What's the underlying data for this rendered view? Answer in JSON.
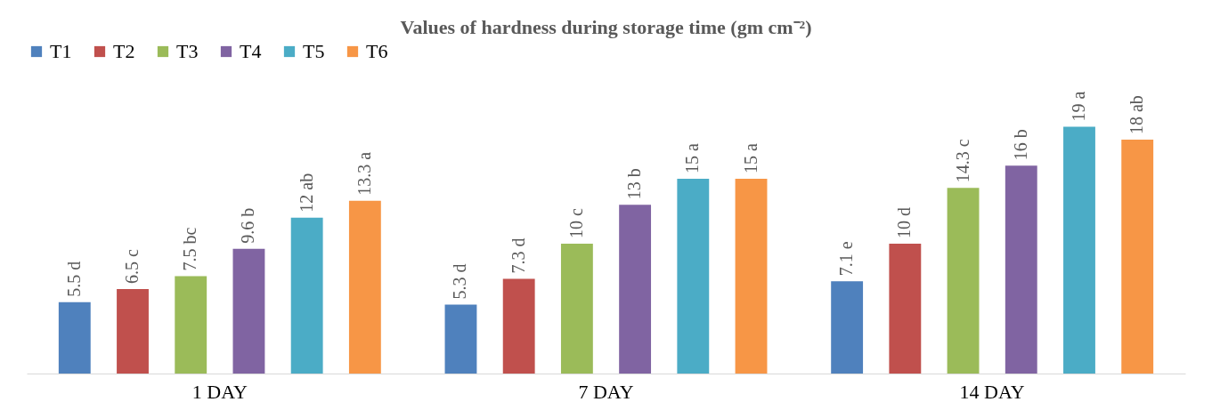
{
  "chart_data": {
    "type": "bar",
    "title": "Values of hardness during storage time (gm cm⁻²)",
    "categories": [
      "1 DAY",
      "7 DAY",
      "14 DAY"
    ],
    "series": [
      {
        "name": "T1",
        "color": "#4f81bd",
        "values": [
          5.5,
          5.3,
          7.1
        ],
        "value_labels": [
          "5.5 d",
          "5.3 d",
          "7.1 e"
        ]
      },
      {
        "name": "T2",
        "color": "#c0504d",
        "values": [
          6.5,
          7.3,
          10
        ],
        "value_labels": [
          "6.5 c",
          "7.3 d",
          "10 d"
        ]
      },
      {
        "name": "T3",
        "color": "#9bbb59",
        "values": [
          7.5,
          10,
          14.3
        ],
        "value_labels": [
          "7.5 bc",
          "10 c",
          "14.3 c"
        ]
      },
      {
        "name": "T4",
        "color": "#8064a2",
        "values": [
          9.6,
          13,
          16
        ],
        "value_labels": [
          "9.6 b",
          "13 b",
          "16 b"
        ]
      },
      {
        "name": "T5",
        "color": "#4bacc6",
        "values": [
          12,
          15,
          19
        ],
        "value_labels": [
          "12 ab",
          "15 a",
          "19 a"
        ]
      },
      {
        "name": "T6",
        "color": "#f79646",
        "values": [
          13.3,
          15,
          18
        ],
        "value_labels": [
          "13.3 a",
          "15 a",
          "18 ab"
        ]
      }
    ],
    "legend": "top",
    "grid": false
  }
}
